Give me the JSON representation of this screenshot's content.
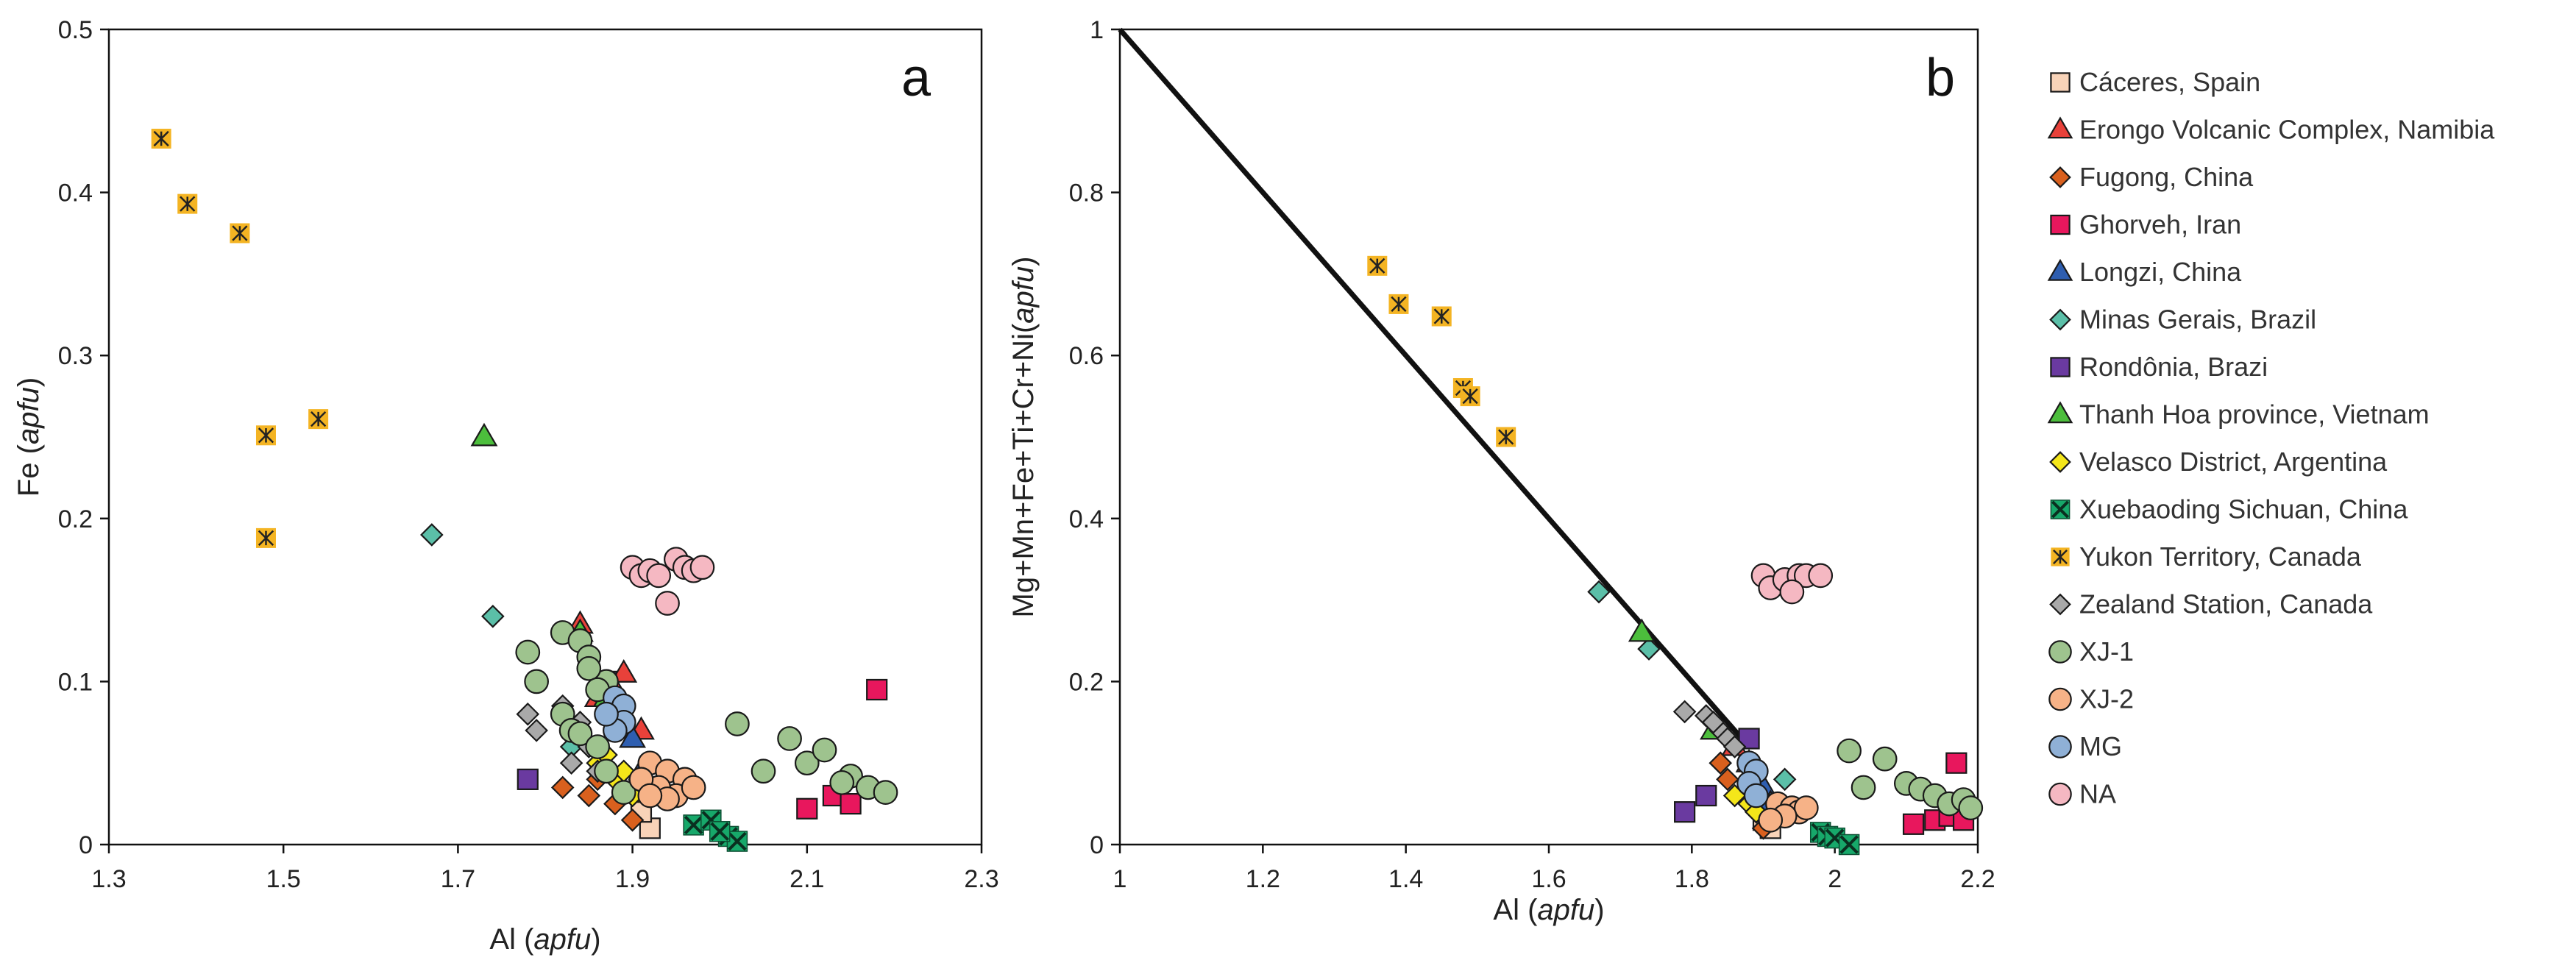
{
  "series_styles": [
    {
      "name": "Cáceres, Spain",
      "marker": "square",
      "fill": "#f8d3b8"
    },
    {
      "name": "Erongo Volcanic Complex, Namibia",
      "marker": "triangle",
      "fill": "#e8413a"
    },
    {
      "name": "Fugong, China",
      "marker": "diamond",
      "fill": "#d9601e"
    },
    {
      "name": "Ghorveh, Iran",
      "marker": "square",
      "fill": "#e8175d"
    },
    {
      "name": "Longzi, China",
      "marker": "triangle",
      "fill": "#2e5eb0"
    },
    {
      "name": "Minas Gerais, Brazil",
      "marker": "diamond",
      "fill": "#5bbfa8"
    },
    {
      "name": "Rondônia, Brazi",
      "marker": "square",
      "fill": "#6a3aa0"
    },
    {
      "name": "Thanh Hoa province, Vietnam",
      "marker": "triangle",
      "fill": "#4cbe3c"
    },
    {
      "name": "Velasco District,  Argentina",
      "marker": "diamond",
      "fill": "#f4e61a"
    },
    {
      "name": "Xuebaoding Sichuan, China",
      "marker": "xsquare",
      "fill": "#17a86a"
    },
    {
      "name": "Yukon Territory, Canada",
      "marker": "asterisk",
      "fill": "#f4b423"
    },
    {
      "name": "Zealand Station, Canada",
      "marker": "diamond",
      "fill": "#a9a9a9"
    },
    {
      "name": "XJ-1",
      "marker": "circle",
      "fill": "#9ec38e"
    },
    {
      "name": "XJ-2",
      "marker": "circle",
      "fill": "#f6b287"
    },
    {
      "name": "MG",
      "marker": "circle",
      "fill": "#8fb0d6"
    },
    {
      "name": "NA",
      "marker": "circle",
      "fill": "#f5b8c2"
    }
  ],
  "chart_data": [
    {
      "type": "scatter",
      "panel": "a",
      "title": "",
      "xlabel": "Al",
      "xlabel_italic": "apfu",
      "ylabel": "Fe",
      "ylabel_italic": "apfu",
      "xlim": [
        1.3,
        2.3
      ],
      "ylim": [
        0,
        0.5
      ],
      "xticks": [
        "1.3",
        "1.5",
        "1.7",
        "1.9",
        "2.1",
        "2.3"
      ],
      "yticks": [
        "0",
        "0.1",
        "0.2",
        "0.3",
        "0.4",
        "0.5"
      ],
      "grid": false,
      "series": [
        {
          "name": "Cáceres, Spain",
          "points": [
            [
              1.92,
              0.01
            ],
            [
              1.91,
              0.02
            ],
            [
              1.93,
              0.03
            ]
          ]
        },
        {
          "name": "Erongo Volcanic Complex, Namibia",
          "points": [
            [
              1.84,
              0.135
            ],
            [
              1.89,
              0.105
            ],
            [
              1.91,
              0.07
            ],
            [
              1.86,
              0.09
            ],
            [
              1.88,
              0.095
            ]
          ]
        },
        {
          "name": "Fugong, China",
          "points": [
            [
              1.82,
              0.035
            ],
            [
              1.85,
              0.03
            ],
            [
              1.88,
              0.025
            ],
            [
              1.9,
              0.015
            ],
            [
              1.86,
              0.04
            ]
          ]
        },
        {
          "name": "Ghorveh, Iran",
          "points": [
            [
              2.18,
              0.095
            ],
            [
              2.1,
              0.022
            ],
            [
              2.13,
              0.03
            ],
            [
              2.15,
              0.025
            ]
          ]
        },
        {
          "name": "Longzi, China",
          "points": [
            [
              1.9,
              0.065
            ],
            [
              1.91,
              0.045
            ]
          ]
        },
        {
          "name": "Minas Gerais, Brazil",
          "points": [
            [
              1.67,
              0.19
            ],
            [
              1.74,
              0.14
            ],
            [
              1.83,
              0.06
            ]
          ]
        },
        {
          "name": "Rondônia, Brazi",
          "points": [
            [
              1.78,
              0.04
            ],
            [
              1.87,
              0.1
            ]
          ]
        },
        {
          "name": "Thanh Hoa province, Vietnam",
          "points": [
            [
              1.73,
              0.25
            ],
            [
              1.84,
              0.13
            ],
            [
              1.87,
              0.09
            ]
          ]
        },
        {
          "name": "Velasco District,  Argentina",
          "points": [
            [
              1.86,
              0.05
            ],
            [
              1.88,
              0.04
            ],
            [
              1.9,
              0.03
            ],
            [
              1.87,
              0.055
            ],
            [
              1.89,
              0.045
            ]
          ]
        },
        {
          "name": "Xuebaoding Sichuan, China",
          "points": [
            [
              1.97,
              0.012
            ],
            [
              1.99,
              0.015
            ],
            [
              2.01,
              0.005
            ],
            [
              2.02,
              0.002
            ],
            [
              2.0,
              0.008
            ]
          ]
        },
        {
          "name": "Yukon Territory, Canada",
          "points": [
            [
              1.36,
              0.433
            ],
            [
              1.39,
              0.393
            ],
            [
              1.45,
              0.375
            ],
            [
              1.48,
              0.251
            ],
            [
              1.54,
              0.261
            ],
            [
              1.48,
              0.188
            ]
          ]
        },
        {
          "name": "Zealand Station, Canada",
          "points": [
            [
              1.78,
              0.08
            ],
            [
              1.79,
              0.07
            ],
            [
              1.82,
              0.085
            ],
            [
              1.84,
              0.075
            ],
            [
              1.83,
              0.05
            ],
            [
              1.86,
              0.045
            ],
            [
              1.85,
              0.06
            ]
          ]
        },
        {
          "name": "XJ-1",
          "points": [
            [
              1.82,
              0.13
            ],
            [
              1.84,
              0.125
            ],
            [
              1.85,
              0.115
            ],
            [
              1.87,
              0.1
            ],
            [
              1.78,
              0.118
            ],
            [
              1.79,
              0.1
            ],
            [
              1.82,
              0.08
            ],
            [
              1.83,
              0.07
            ],
            [
              1.84,
              0.068
            ],
            [
              1.86,
              0.06
            ],
            [
              1.87,
              0.045
            ],
            [
              1.89,
              0.032
            ],
            [
              1.85,
              0.108
            ],
            [
              1.86,
              0.095
            ],
            [
              2.02,
              0.074
            ],
            [
              2.08,
              0.065
            ],
            [
              2.05,
              0.045
            ],
            [
              2.1,
              0.05
            ],
            [
              2.12,
              0.058
            ],
            [
              2.15,
              0.042
            ],
            [
              2.17,
              0.035
            ],
            [
              2.19,
              0.032
            ],
            [
              2.14,
              0.038
            ]
          ]
        },
        {
          "name": "XJ-2",
          "points": [
            [
              1.92,
              0.05
            ],
            [
              1.94,
              0.045
            ],
            [
              1.96,
              0.04
            ],
            [
              1.95,
              0.03
            ],
            [
              1.97,
              0.035
            ],
            [
              1.93,
              0.035
            ],
            [
              1.91,
              0.04
            ],
            [
              1.94,
              0.028
            ],
            [
              1.92,
              0.03
            ]
          ]
        },
        {
          "name": "MG",
          "points": [
            [
              1.88,
              0.09
            ],
            [
              1.89,
              0.085
            ],
            [
              1.89,
              0.075
            ],
            [
              1.88,
              0.07
            ],
            [
              1.87,
              0.08
            ]
          ]
        },
        {
          "name": "NA",
          "points": [
            [
              1.9,
              0.17
            ],
            [
              1.91,
              0.165
            ],
            [
              1.92,
              0.168
            ],
            [
              1.93,
              0.165
            ],
            [
              1.95,
              0.175
            ],
            [
              1.96,
              0.17
            ],
            [
              1.97,
              0.168
            ],
            [
              1.98,
              0.17
            ],
            [
              1.94,
              0.148
            ]
          ]
        }
      ]
    },
    {
      "type": "scatter",
      "panel": "b",
      "title": "",
      "xlabel": "Al",
      "xlabel_italic": "apfu",
      "ylabel": "Mg+Mn+Fe+Ti+Cr+Ni",
      "ylabel_italic": "apfu",
      "xlim": [
        1,
        2.2
      ],
      "ylim": [
        0,
        1
      ],
      "xticks": [
        "1",
        "1.2",
        "1.4",
        "1.6",
        "1.8",
        "2",
        "2.2"
      ],
      "yticks": [
        "0",
        "0.2",
        "0.4",
        "0.6",
        "0.8",
        "1"
      ],
      "grid": false,
      "reference_line": {
        "from": [
          1.0,
          1.0
        ],
        "to": [
          1.87,
          0.13
        ]
      },
      "series": [
        {
          "name": "Cáceres, Spain",
          "points": [
            [
              1.91,
              0.02
            ],
            [
              1.9,
              0.03
            ]
          ]
        },
        {
          "name": "Erongo Volcanic Complex, Namibia",
          "points": [
            [
              1.88,
              0.1
            ],
            [
              1.86,
              0.12
            ],
            [
              1.89,
              0.08
            ]
          ]
        },
        {
          "name": "Fugong, China",
          "points": [
            [
              1.85,
              0.08
            ],
            [
              1.87,
              0.06
            ],
            [
              1.89,
              0.04
            ],
            [
              1.9,
              0.02
            ],
            [
              1.84,
              0.1
            ]
          ]
        },
        {
          "name": "Ghorveh, Iran",
          "points": [
            [
              2.17,
              0.1
            ],
            [
              2.11,
              0.025
            ],
            [
              2.14,
              0.03
            ],
            [
              2.16,
              0.035
            ],
            [
              2.18,
              0.03
            ]
          ]
        },
        {
          "name": "Longzi, China",
          "points": [
            [
              1.9,
              0.07
            ],
            [
              1.91,
              0.05
            ]
          ]
        },
        {
          "name": "Minas Gerais, Brazil",
          "points": [
            [
              1.67,
              0.31
            ],
            [
              1.74,
              0.24
            ],
            [
              1.93,
              0.08
            ]
          ]
        },
        {
          "name": "Rondônia, Brazi",
          "points": [
            [
              1.79,
              0.04
            ],
            [
              1.82,
              0.06
            ],
            [
              1.88,
              0.13
            ]
          ]
        },
        {
          "name": "Thanh Hoa province, Vietnam",
          "points": [
            [
              1.73,
              0.26
            ],
            [
              1.83,
              0.14
            ]
          ]
        },
        {
          "name": "Velasco District,  Argentina",
          "points": [
            [
              1.86,
              0.06
            ],
            [
              1.88,
              0.05
            ],
            [
              1.89,
              0.04
            ]
          ]
        },
        {
          "name": "Xuebaoding Sichuan, China",
          "points": [
            [
              1.98,
              0.015
            ],
            [
              1.99,
              0.01
            ],
            [
              2.0,
              0.008
            ],
            [
              2.02,
              0.0
            ]
          ]
        },
        {
          "name": "Yukon Territory, Canada",
          "points": [
            [
              1.36,
              0.71
            ],
            [
              1.39,
              0.663
            ],
            [
              1.45,
              0.648
            ],
            [
              1.48,
              0.56
            ],
            [
              1.49,
              0.55
            ],
            [
              1.54,
              0.5
            ]
          ]
        },
        {
          "name": "Zealand Station, Canada",
          "points": [
            [
              1.79,
              0.163
            ],
            [
              1.82,
              0.158
            ],
            [
              1.84,
              0.14
            ],
            [
              1.85,
              0.13
            ],
            [
              1.86,
              0.12
            ],
            [
              1.83,
              0.15
            ]
          ]
        },
        {
          "name": "XJ-1",
          "points": [
            [
              2.02,
              0.115
            ],
            [
              2.07,
              0.105
            ],
            [
              2.04,
              0.07
            ],
            [
              2.1,
              0.075
            ],
            [
              2.12,
              0.068
            ],
            [
              2.14,
              0.06
            ],
            [
              2.16,
              0.05
            ],
            [
              2.18,
              0.055
            ],
            [
              2.19,
              0.045
            ]
          ]
        },
        {
          "name": "XJ-2",
          "points": [
            [
              1.92,
              0.05
            ],
            [
              1.94,
              0.045
            ],
            [
              1.95,
              0.04
            ],
            [
              1.96,
              0.045
            ],
            [
              1.93,
              0.035
            ],
            [
              1.91,
              0.03
            ]
          ]
        },
        {
          "name": "MG",
          "points": [
            [
              1.88,
              0.1
            ],
            [
              1.89,
              0.09
            ],
            [
              1.88,
              0.075
            ],
            [
              1.89,
              0.06
            ]
          ]
        },
        {
          "name": "NA",
          "points": [
            [
              1.9,
              0.33
            ],
            [
              1.91,
              0.315
            ],
            [
              1.93,
              0.325
            ],
            [
              1.95,
              0.33
            ],
            [
              1.96,
              0.33
            ],
            [
              1.98,
              0.33
            ],
            [
              1.94,
              0.31
            ]
          ]
        }
      ]
    }
  ]
}
